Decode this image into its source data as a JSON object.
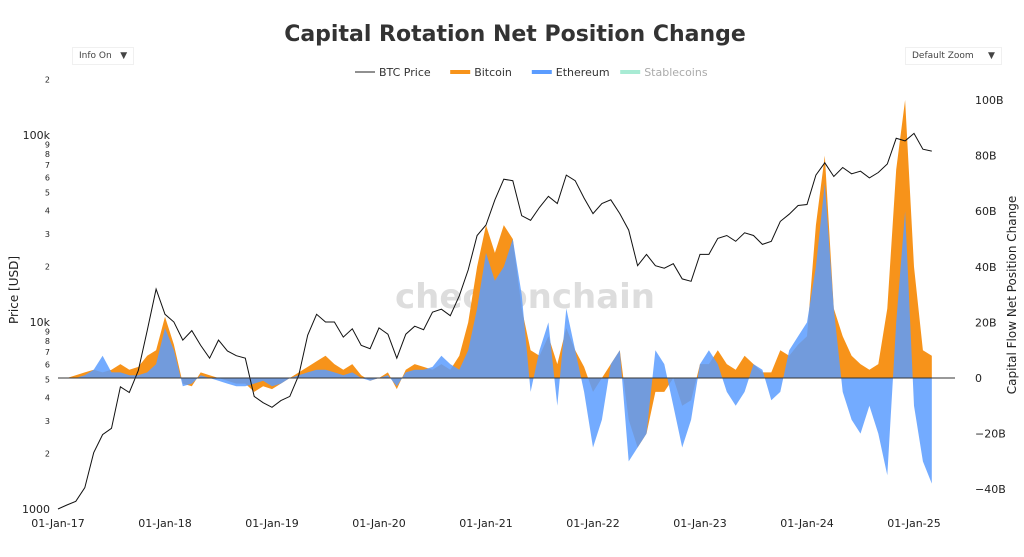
{
  "controls": {
    "info": "Info On",
    "zoom": "Default Zoom",
    "caret": "▼"
  },
  "watermark": "checkonchain",
  "chart_data": {
    "type": "area",
    "title": "Capital Rotation Net Position Change",
    "ylabel_left": "Price [USD]",
    "ylabel_right": "Capital Flow Net Position Change",
    "left_axis": {
      "scale": "log",
      "range": [
        1000,
        200000
      ],
      "tick_labels": [
        {
          "v": 1000,
          "t": "1000"
        },
        {
          "v": 2000,
          "t": "2"
        },
        {
          "v": 3000,
          "t": "3"
        },
        {
          "v": 4000,
          "t": "4"
        },
        {
          "v": 5000,
          "t": "5"
        },
        {
          "v": 6000,
          "t": "6"
        },
        {
          "v": 7000,
          "t": "7"
        },
        {
          "v": 8000,
          "t": "8"
        },
        {
          "v": 9000,
          "t": "9"
        },
        {
          "v": 10000,
          "t": "10k"
        },
        {
          "v": 20000,
          "t": "2"
        },
        {
          "v": 30000,
          "t": "3"
        },
        {
          "v": 40000,
          "t": "4"
        },
        {
          "v": 50000,
          "t": "5"
        },
        {
          "v": 60000,
          "t": "6"
        },
        {
          "v": 70000,
          "t": "7"
        },
        {
          "v": 80000,
          "t": "8"
        },
        {
          "v": 90000,
          "t": "9"
        },
        {
          "v": 100000,
          "t": "100k"
        },
        {
          "v": 200000,
          "t": "2"
        }
      ]
    },
    "right_axis": {
      "range": [
        -40,
        100
      ],
      "tick_labels": [
        {
          "v": 100,
          "t": "100B"
        },
        {
          "v": 80,
          "t": "80B"
        },
        {
          "v": 60,
          "t": "60B"
        },
        {
          "v": 40,
          "t": "40B"
        },
        {
          "v": 20,
          "t": "20B"
        },
        {
          "v": 0,
          "t": "0"
        },
        {
          "v": -20,
          "t": "−20B"
        },
        {
          "v": -40,
          "t": "−40B"
        }
      ]
    },
    "x_ticks": [
      "01-Jan-17",
      "01-Jan-18",
      "01-Jan-19",
      "01-Jan-20",
      "01-Jan-21",
      "01-Jan-22",
      "01-Jan-23",
      "01-Jan-24",
      "01-Jan-25"
    ],
    "legend": [
      {
        "name": "BTC Price",
        "color": "#222222"
      },
      {
        "name": "Bitcoin",
        "color": "#f7931a"
      },
      {
        "name": "Ethereum",
        "color": "#5b9cff"
      },
      {
        "name": "Stablecoins",
        "color": "#a8ebd4",
        "hidden": true
      }
    ],
    "x": [
      "2017-01",
      "2017-02",
      "2017-03",
      "2017-04",
      "2017-05",
      "2017-06",
      "2017-07",
      "2017-08",
      "2017-09",
      "2017-10",
      "2017-11",
      "2017-12",
      "2018-01",
      "2018-02",
      "2018-03",
      "2018-04",
      "2018-05",
      "2018-06",
      "2018-07",
      "2018-08",
      "2018-09",
      "2018-10",
      "2018-11",
      "2018-12",
      "2019-01",
      "2019-02",
      "2019-03",
      "2019-04",
      "2019-05",
      "2019-06",
      "2019-07",
      "2019-08",
      "2019-09",
      "2019-10",
      "2019-11",
      "2019-12",
      "2020-01",
      "2020-02",
      "2020-03",
      "2020-04",
      "2020-05",
      "2020-06",
      "2020-07",
      "2020-08",
      "2020-09",
      "2020-10",
      "2020-11",
      "2020-12",
      "2021-01",
      "2021-02",
      "2021-03",
      "2021-04",
      "2021-05",
      "2021-06",
      "2021-07",
      "2021-08",
      "2021-09",
      "2021-10",
      "2021-11",
      "2021-12",
      "2022-01",
      "2022-02",
      "2022-03",
      "2022-04",
      "2022-05",
      "2022-06",
      "2022-07",
      "2022-08",
      "2022-09",
      "2022-10",
      "2022-11",
      "2022-12",
      "2023-01",
      "2023-02",
      "2023-03",
      "2023-04",
      "2023-05",
      "2023-06",
      "2023-07",
      "2023-08",
      "2023-09",
      "2023-10",
      "2023-11",
      "2023-12",
      "2024-01",
      "2024-02",
      "2024-03",
      "2024-04",
      "2024-05",
      "2024-06",
      "2024-07",
      "2024-08",
      "2024-09",
      "2024-10",
      "2024-11",
      "2024-12",
      "2025-01",
      "2025-02",
      "2025-03"
    ],
    "series": [
      {
        "name": "BTC Price",
        "axis": "left",
        "values": [
          1000,
          1050,
          1100,
          1300,
          2000,
          2500,
          2700,
          4500,
          4200,
          5500,
          9000,
          15000,
          11000,
          10000,
          8000,
          9000,
          7500,
          6400,
          8000,
          7000,
          6600,
          6400,
          4000,
          3700,
          3500,
          3800,
          4000,
          5200,
          8500,
          11000,
          10000,
          10000,
          8300,
          9200,
          7500,
          7200,
          9300,
          8600,
          6400,
          8600,
          9500,
          9100,
          11300,
          11700,
          10800,
          13800,
          19000,
          29000,
          33000,
          45000,
          58000,
          57000,
          37000,
          35000,
          41000,
          47000,
          43000,
          61000,
          57000,
          46000,
          38000,
          43000,
          45000,
          38000,
          31000,
          20000,
          23000,
          20000,
          19400,
          20500,
          17000,
          16500,
          23000,
          23000,
          28000,
          29000,
          27000,
          30000,
          29000,
          26000,
          27000,
          34500,
          37700,
          42000,
          42500,
          61000,
          71000,
          60000,
          67000,
          62000,
          64000,
          59000,
          63000,
          70000,
          96000,
          93000,
          102000,
          84000,
          82000
        ]
      },
      {
        "name": "Bitcoin",
        "axis": "right",
        "values": [
          0,
          0,
          1,
          2,
          3,
          2,
          3,
          5,
          3,
          4,
          8,
          10,
          22,
          12,
          -2,
          -3,
          2,
          1,
          0,
          -1,
          -2,
          -2,
          -5,
          -3,
          -4,
          -2,
          0,
          2,
          4,
          6,
          8,
          5,
          3,
          5,
          1,
          -1,
          0,
          2,
          -4,
          3,
          5,
          4,
          3,
          5,
          3,
          8,
          20,
          40,
          55,
          45,
          55,
          50,
          25,
          10,
          8,
          15,
          5,
          18,
          10,
          4,
          -5,
          0,
          5,
          10,
          -15,
          -25,
          -20,
          -5,
          -5,
          0,
          -10,
          -8,
          5,
          5,
          10,
          5,
          3,
          8,
          5,
          2,
          2,
          10,
          8,
          12,
          15,
          55,
          80,
          25,
          15,
          8,
          5,
          3,
          5,
          25,
          75,
          100,
          40,
          10,
          8
        ]
      },
      {
        "name": "Ethereum",
        "axis": "right",
        "values": [
          0,
          0,
          0,
          1,
          3,
          8,
          2,
          2,
          1,
          1,
          2,
          5,
          18,
          10,
          -3,
          -2,
          1,
          0,
          -1,
          -2,
          -3,
          -3,
          -2,
          -1,
          -3,
          -2,
          0,
          1,
          2,
          3,
          3,
          2,
          1,
          2,
          0,
          -1,
          0,
          1,
          -3,
          2,
          3,
          3,
          4,
          8,
          5,
          3,
          10,
          25,
          45,
          35,
          40,
          50,
          30,
          -5,
          10,
          20,
          -10,
          25,
          10,
          -5,
          -25,
          -15,
          5,
          10,
          -30,
          -25,
          -20,
          10,
          5,
          -10,
          -25,
          -15,
          5,
          10,
          5,
          -5,
          -10,
          -5,
          5,
          3,
          -8,
          -5,
          10,
          15,
          20,
          40,
          70,
          25,
          -5,
          -15,
          -20,
          -10,
          -20,
          -35,
          20,
          60,
          -10,
          -30,
          -38
        ]
      }
    ]
  }
}
